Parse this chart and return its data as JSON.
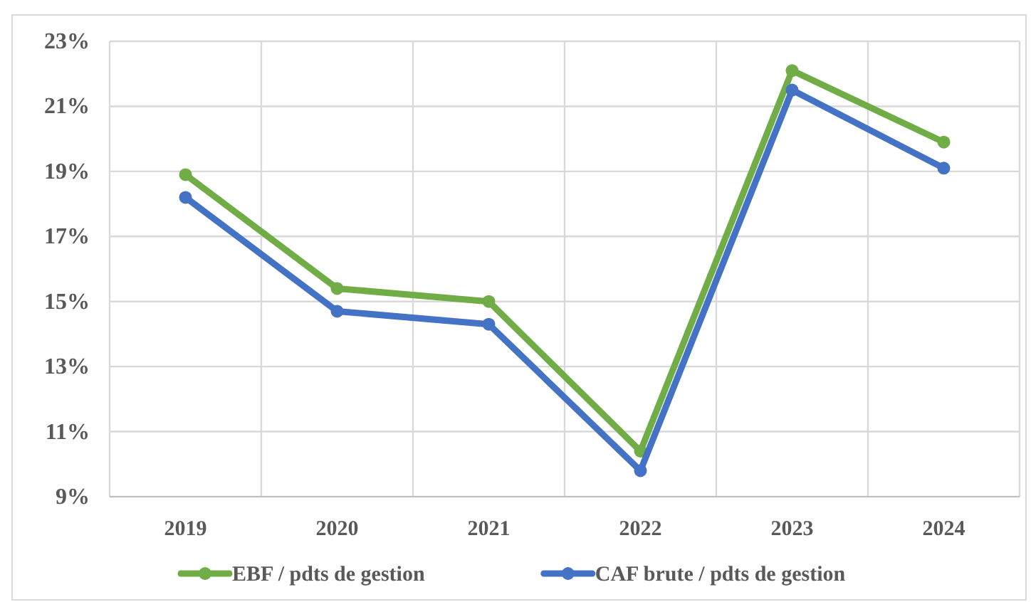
{
  "chart_data": {
    "type": "line",
    "categories": [
      "2019",
      "2020",
      "2021",
      "2022",
      "2023",
      "2024"
    ],
    "series": [
      {
        "name": "EBF / pdts de gestion",
        "color": "#70ad47",
        "values": [
          18.9,
          15.4,
          15.0,
          10.4,
          22.1,
          19.9
        ]
      },
      {
        "name": "CAF brute / pdts de gestion",
        "color": "#4472c4",
        "values": [
          18.2,
          14.7,
          14.3,
          9.8,
          21.5,
          19.1
        ]
      }
    ],
    "ylim": [
      9,
      23
    ],
    "yticks": [
      {
        "value": 9,
        "label": "9%"
      },
      {
        "value": 11,
        "label": "11%"
      },
      {
        "value": 13,
        "label": "13%"
      },
      {
        "value": 15,
        "label": "15%"
      },
      {
        "value": 17,
        "label": "17%"
      },
      {
        "value": 19,
        "label": "19%"
      },
      {
        "value": 21,
        "label": "21%"
      },
      {
        "value": 23,
        "label": "23%"
      }
    ],
    "grid": true,
    "legend": "bottom",
    "marker": "circle"
  }
}
